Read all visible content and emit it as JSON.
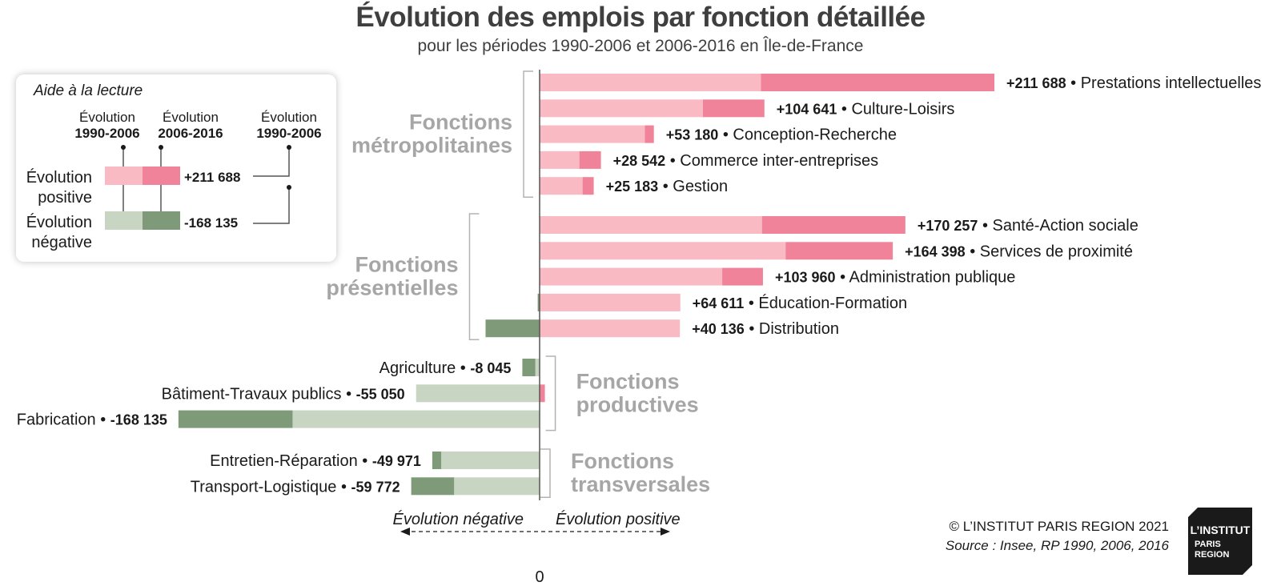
{
  "header": {
    "title": "Évolution des emplois par fonction détaillée",
    "subtitle": "pour les périodes 1990-2006 et 2006-2016 en Île-de-France"
  },
  "legend": {
    "title": "Aide à la lecture",
    "col1": [
      "Évolution",
      "1990-2006"
    ],
    "col2": [
      "Évolution",
      "2006-2016"
    ],
    "col3": [
      "Évolution",
      "1990-2006"
    ],
    "positive_label": [
      "Évolution",
      "positive"
    ],
    "negative_label": [
      "Évolution",
      "négative"
    ],
    "positive_value": "+211 688",
    "negative_value": "-168 135"
  },
  "axis": {
    "zero_label": "0",
    "negative_label": "Évolution négative",
    "positive_label": "Évolution positive"
  },
  "footer": {
    "copyright": "© L’INSTITUT PARIS REGION 2021",
    "source": "Source : Insee, RP 1990, 2006, 2016"
  },
  "logo": {
    "line1": "L’INSTITUT",
    "line2": "PARIS",
    "line3": "REGION"
  },
  "colors": {
    "pos_1990_2006": "#f9bac4",
    "pos_2006_2016": "#f08399",
    "neg_1990_2006": "#c8d5c2",
    "neg_2006_2016": "#7e9a78",
    "group_label": "#a6a6a6",
    "bracket": "#b3b3b3"
  },
  "chart_data": {
    "type": "bar",
    "orientation": "horizontal",
    "stacked": "by period (1990-2006 then 2006-2016)",
    "title": "Évolution des emplois par fonction détaillée",
    "subtitle": "pour les périodes 1990-2006 et 2006-2016 en Île-de-France",
    "series_names": [
      "Évolution 1990-2006",
      "Évolution 2006-2016"
    ],
    "xlim": [
      -200000,
      230000
    ],
    "groups": [
      {
        "name": "Fonctions métropolitaines",
        "name_lines": [
          "Fonctions",
          "métropolitaines"
        ],
        "items": [
          {
            "name": "Prestations intellectuelles",
            "total_label": "+211 688",
            "v1990_2006": 103000,
            "v2006_2016": 108688
          },
          {
            "name": "Culture-Loisirs",
            "total_label": "+104 641",
            "v1990_2006": 76000,
            "v2006_2016": 28641
          },
          {
            "name": "Conception-Recherche",
            "total_label": "+53 180",
            "v1990_2006": 49000,
            "v2006_2016": 4180
          },
          {
            "name": "Commerce inter-entreprises",
            "total_label": "+28 542",
            "v1990_2006": 18500,
            "v2006_2016": 10042
          },
          {
            "name": "Gestion",
            "total_label": "+25 183",
            "v1990_2006": 20000,
            "v2006_2016": 5183
          }
        ]
      },
      {
        "name": "Fonctions présentielles",
        "name_lines": [
          "Fonctions",
          "présentielles"
        ],
        "items": [
          {
            "name": "Santé-Action sociale",
            "total_label": "+170 257",
            "v1990_2006": 103500,
            "v2006_2016": 66757
          },
          {
            "name": "Services de proximité",
            "total_label": "+164 398",
            "v1990_2006": 114500,
            "v2006_2016": 49898
          },
          {
            "name": "Administration publique",
            "total_label": "+103 960",
            "v1990_2006": 85000,
            "v2006_2016": 18960
          },
          {
            "name": "Éducation-Formation",
            "total_label": "+64 611",
            "v1990_2006": 65500,
            "v2006_2016": -889
          },
          {
            "name": "Distribution",
            "total_label": "+40 136",
            "v1990_2006": 65300,
            "v2006_2016": -25164
          }
        ]
      },
      {
        "name": "Fonctions productives",
        "name_lines": [
          "Fonctions",
          "productives"
        ],
        "items": [
          {
            "name": "Agriculture",
            "total_label": "-8 045",
            "v1990_2006": -2000,
            "v2006_2016": -6045
          },
          {
            "name": "Bâtiment-Travaux publics",
            "total_label": "-55 050",
            "v1990_2006": -57500,
            "v2006_2016": 2450
          },
          {
            "name": "Fabrication",
            "total_label": "-168 135",
            "v1990_2006": -115000,
            "v2006_2016": -53135
          }
        ]
      },
      {
        "name": "Fonctions transversales",
        "name_lines": [
          "Fonctions",
          "transversales"
        ],
        "items": [
          {
            "name": "Entretien-Réparation",
            "total_label": "-49 971",
            "v1990_2006": -45800,
            "v2006_2016": -4171
          },
          {
            "name": "Transport-Logistique",
            "total_label": "-59 772",
            "v1990_2006": -39800,
            "v2006_2016": -19972
          }
        ]
      }
    ]
  }
}
